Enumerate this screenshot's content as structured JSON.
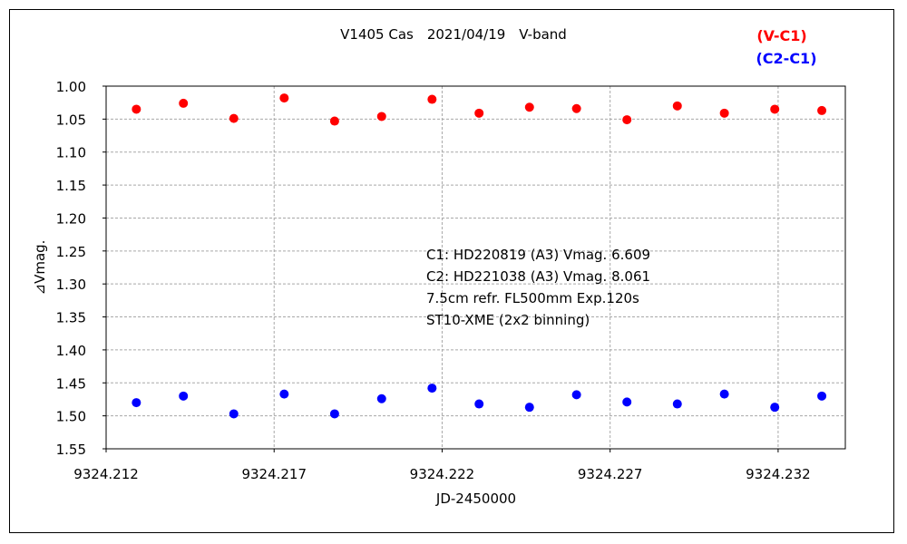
{
  "chart_data": {
    "type": "scatter",
    "title": "V1405 Cas　2021/04/19　V-band",
    "xlabel": "JD-2450000",
    "ylabel": "⊿Vmag.",
    "xlim": [
      9324.212,
      9324.234
    ],
    "ylim": [
      1.55,
      1.0
    ],
    "y_inverted": true,
    "x_ticks": [
      "9324.212",
      "9324.217",
      "9324.222",
      "9324.227",
      "9324.232"
    ],
    "y_ticks": [
      "1.00",
      "1.05",
      "1.10",
      "1.15",
      "1.20",
      "1.25",
      "1.30",
      "1.35",
      "1.40",
      "1.45",
      "1.50",
      "1.55"
    ],
    "grid": true,
    "legend_position": "top-right",
    "annotation": [
      "C1: HD220819 (A3) Vmag. 6.609",
      "C2: HD221038 (A3) Vmag. 8.061",
      "7.5cm refr. FL500mm  Exp.120s",
      "ST10-XME (2x2 binning)"
    ],
    "series": [
      {
        "name": "(V-C1)",
        "color": "#ff0000",
        "x": [
          9324.2129,
          9324.2143,
          9324.2158,
          9324.2173,
          9324.2188,
          9324.2202,
          9324.2217,
          9324.2231,
          9324.2246,
          9324.226,
          9324.2275,
          9324.229,
          9324.2304,
          9324.2319,
          9324.2333
        ],
        "y": [
          1.035,
          1.026,
          1.049,
          1.018,
          1.053,
          1.046,
          1.02,
          1.041,
          1.032,
          1.034,
          1.051,
          1.03,
          1.041,
          1.035,
          1.037
        ]
      },
      {
        "name": "(C2-C1)",
        "color": "#0000ff",
        "x": [
          9324.2129,
          9324.2143,
          9324.2158,
          9324.2173,
          9324.2188,
          9324.2202,
          9324.2217,
          9324.2231,
          9324.2246,
          9324.226,
          9324.2275,
          9324.229,
          9324.2304,
          9324.2319,
          9324.2333
        ],
        "y": [
          1.48,
          1.47,
          1.497,
          1.467,
          1.497,
          1.474,
          1.458,
          1.482,
          1.487,
          1.468,
          1.479,
          1.482,
          1.467,
          1.487,
          1.47
        ]
      }
    ]
  }
}
